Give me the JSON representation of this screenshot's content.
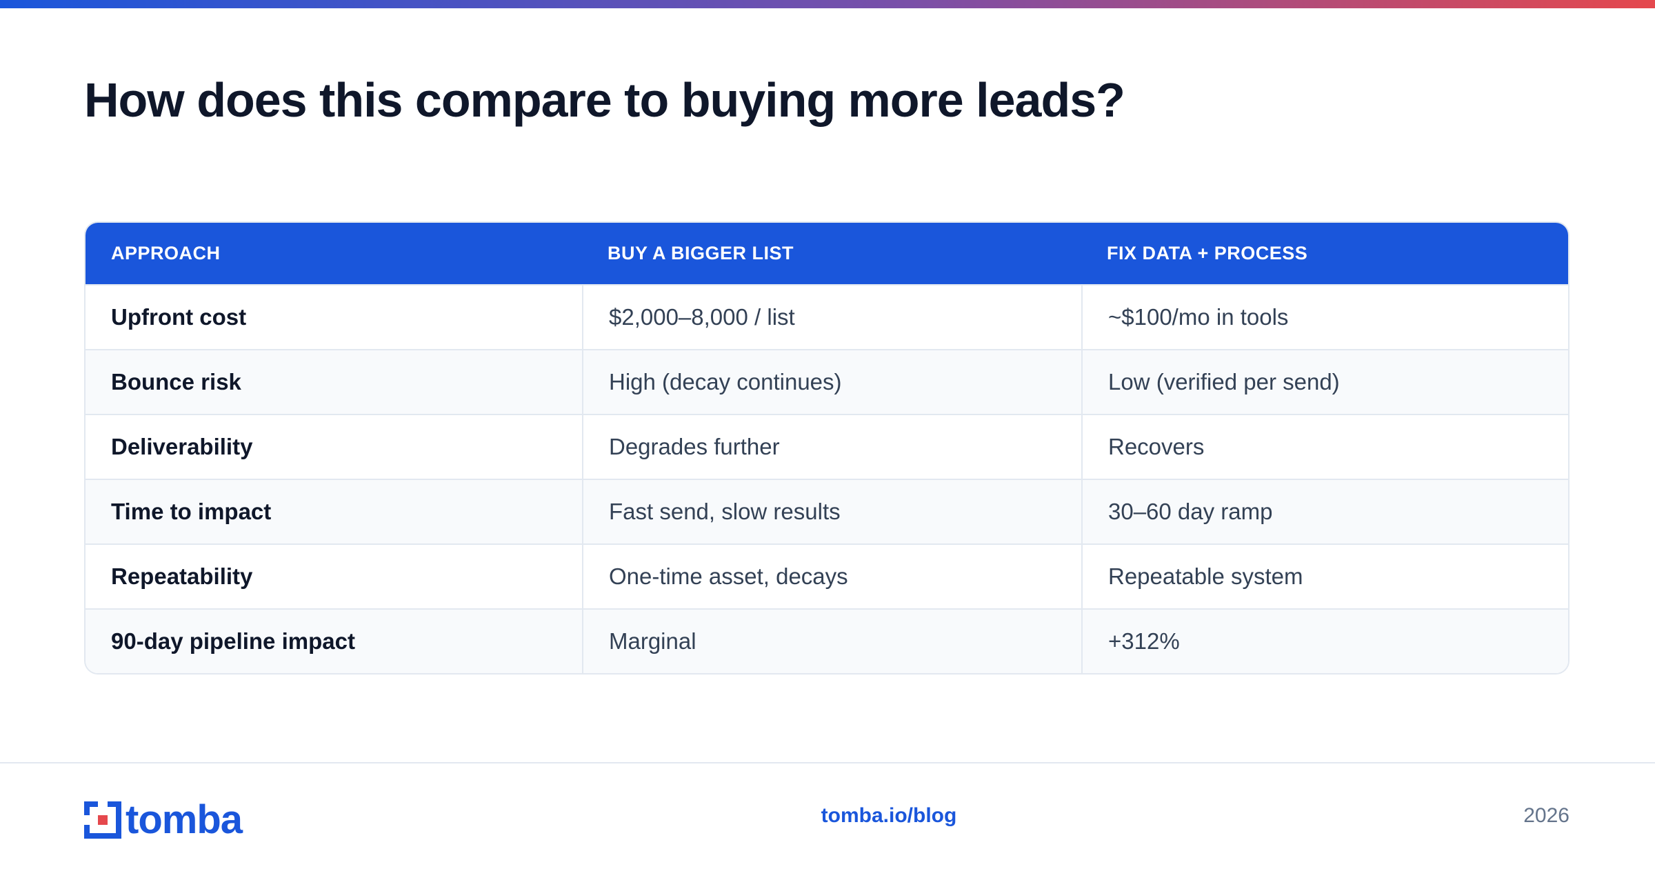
{
  "header": {
    "title": "How does this compare to buying more leads?"
  },
  "table": {
    "columns": [
      "APPROACH",
      "BUY A BIGGER LIST",
      "FIX DATA + PROCESS"
    ],
    "rows": [
      [
        "Upfront cost",
        "$2,000–8,000 / list",
        "~$100/mo in tools"
      ],
      [
        "Bounce risk",
        "High (decay continues)",
        "Low (verified per send)"
      ],
      [
        "Deliverability",
        "Degrades further",
        "Recovers"
      ],
      [
        "Time to impact",
        "Fast send, slow results",
        "30–60 day ramp"
      ],
      [
        "Repeatability",
        "One-time asset, decays",
        "Repeatable system"
      ],
      [
        "90-day pipeline impact",
        "Marginal",
        "+312%"
      ]
    ]
  },
  "footer": {
    "brand": "tomba",
    "link": "tomba.io/blog",
    "year": "2026"
  }
}
